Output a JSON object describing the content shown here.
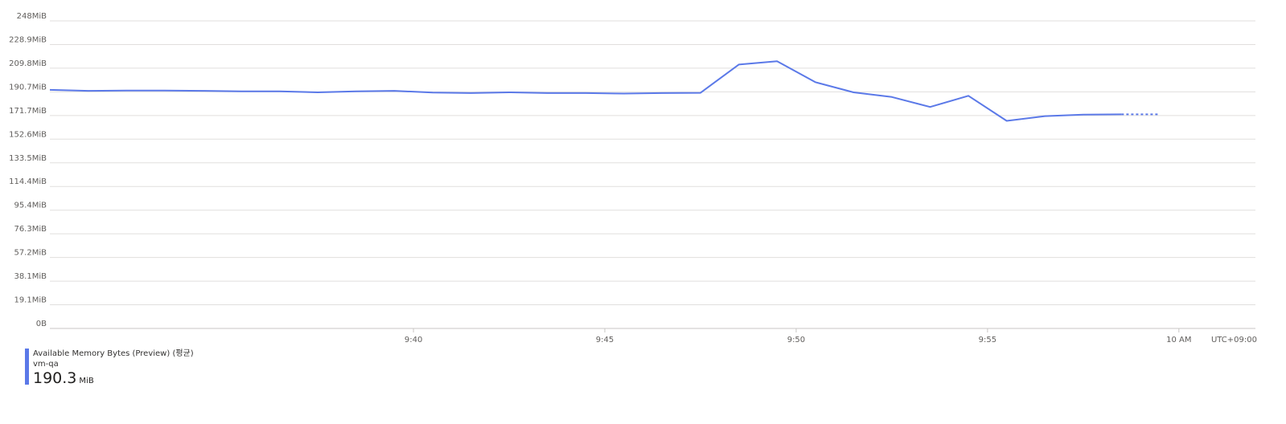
{
  "chart_data": {
    "type": "line",
    "y_ticks": [
      "248MiB",
      "228.9MiB",
      "209.8MiB",
      "190.7MiB",
      "171.7MiB",
      "152.6MiB",
      "133.5MiB",
      "114.4MiB",
      "95.4MiB",
      "76.3MiB",
      "57.2MiB",
      "38.1MiB",
      "19.1MiB",
      "0B"
    ],
    "ylim": [
      0,
      248
    ],
    "x_ticks": [
      {
        "label": "9:40",
        "t": 9.5
      },
      {
        "label": "9:45",
        "t": 14.5
      },
      {
        "label": "9:50",
        "t": 19.5
      },
      {
        "label": "9:55",
        "t": 24.5
      },
      {
        "label": "10 AM",
        "t": 29.5
      }
    ],
    "timezone_label": "UTC+09:00",
    "series": [
      {
        "name": "Available Memory Bytes (Preview) (평균)",
        "resource": "vm-qa",
        "color": "#5b79e8",
        "x": [
          0,
          1,
          2,
          3,
          4,
          5,
          6,
          7,
          8,
          9,
          10,
          11,
          12,
          13,
          14,
          15,
          16,
          17,
          18,
          19,
          20,
          21,
          22,
          23,
          24,
          25,
          26,
          27,
          28,
          29
        ],
        "y": [
          192.4,
          191.6,
          191.8,
          191.8,
          191.6,
          191.2,
          191.2,
          190.4,
          191.2,
          191.6,
          190.2,
          189.8,
          190.4,
          189.8,
          189.8,
          189.4,
          189.8,
          190.0,
          212.8,
          215.4,
          198.6,
          190.4,
          186.6,
          178.6,
          187.6,
          167.4,
          171.2,
          172.4,
          172.6,
          172.6
        ],
        "dashed_from_index": 28
      }
    ],
    "grid": true
  },
  "legend": {
    "title": "Available Memory Bytes (Preview) (평균)",
    "resource": "vm-qa",
    "value": "190.3",
    "unit": "MiB"
  }
}
